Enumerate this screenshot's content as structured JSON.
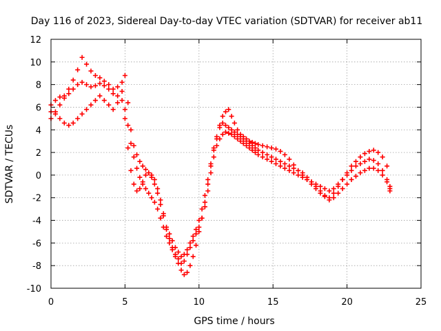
{
  "chart_data": {
    "type": "scatter",
    "title": "Day 116 of 2023, Sidereal Day-to-day VTEC variation (SDTVAR) for receiver ab11",
    "xlabel": "GPS time / hours",
    "ylabel": "SDTVAR / TECUs",
    "xlim": [
      0,
      25
    ],
    "ylim": [
      -10,
      12
    ],
    "xticks": [
      "0",
      "5",
      "10",
      "15",
      "20",
      "25"
    ],
    "yticks": [
      "12",
      "10",
      "8",
      "6",
      "4",
      "2",
      "0",
      "-2",
      "-4",
      "-6",
      "-8",
      "-10"
    ],
    "grid": true,
    "marker": "plus",
    "color": "#ff0000",
    "series": [
      {
        "x": [
          0.0,
          0.3,
          0.6,
          0.9,
          1.2,
          1.5,
          1.8,
          2.1,
          2.4,
          2.7,
          3.0,
          3.3,
          3.6,
          3.9,
          4.2,
          4.5,
          4.8,
          5.0,
          5.2,
          5.4,
          5.6,
          5.8,
          6.0,
          6.2,
          6.4,
          6.6,
          6.8,
          7.0,
          7.2,
          7.4,
          7.6,
          7.8,
          8.0,
          8.2,
          8.4,
          8.6,
          8.8,
          9.0,
          9.2,
          9.4,
          9.6,
          9.8,
          10.0,
          10.2,
          10.4,
          10.6,
          10.8,
          11.0,
          11.2,
          11.4,
          11.6,
          11.8,
          12.0,
          12.2,
          12.4,
          12.6,
          12.8,
          13.0,
          13.2,
          13.4,
          13.6,
          13.8,
          14.0,
          14.3,
          14.6,
          14.9,
          15.2,
          15.5,
          15.8,
          16.1,
          16.4,
          16.7,
          17.0,
          17.3,
          17.6,
          17.9,
          18.2,
          18.5,
          18.8,
          19.1,
          19.4,
          19.7,
          20.0,
          20.3,
          20.6,
          20.9,
          21.2,
          21.5,
          21.8,
          22.1,
          22.4,
          22.7,
          22.9
        ],
        "y": [
          5.0,
          5.6,
          6.2,
          6.8,
          7.6,
          8.4,
          9.3,
          10.4,
          9.8,
          9.2,
          8.8,
          8.6,
          8.3,
          8.0,
          7.6,
          7.8,
          8.2,
          8.8,
          6.4,
          4.0,
          2.6,
          1.8,
          1.2,
          0.8,
          0.5,
          0.2,
          0.0,
          -0.4,
          -1.2,
          -2.2,
          -3.4,
          -4.8,
          -5.6,
          -6.4,
          -7.2,
          -7.8,
          -8.4,
          -8.8,
          -8.6,
          -8.0,
          -7.2,
          -6.2,
          -5.0,
          -3.8,
          -2.4,
          -0.8,
          0.8,
          2.2,
          3.2,
          4.4,
          5.2,
          5.6,
          5.8,
          5.2,
          4.6,
          4.0,
          3.6,
          3.4,
          3.2,
          3.0,
          2.9,
          2.8,
          2.7,
          2.6,
          2.5,
          2.4,
          2.3,
          2.1,
          1.8,
          1.4,
          0.9,
          0.4,
          0.0,
          -0.4,
          -0.8,
          -1.2,
          -1.6,
          -1.9,
          -2.0,
          -1.6,
          -1.0,
          -0.4,
          0.2,
          0.8,
          1.2,
          1.6,
          1.9,
          2.1,
          2.2,
          2.0,
          1.6,
          0.8,
          -1.2
        ]
      },
      {
        "x": [
          0.0,
          0.3,
          0.6,
          0.9,
          1.2,
          1.5,
          1.8,
          2.1,
          2.4,
          2.7,
          3.0,
          3.3,
          3.6,
          3.9,
          4.2,
          4.5,
          4.8,
          5.0,
          5.2,
          5.4,
          5.6,
          5.8,
          6.0,
          6.2,
          6.4,
          6.6,
          6.8,
          7.0,
          7.2,
          7.4,
          7.6,
          7.8,
          8.0,
          8.2,
          8.4,
          8.6,
          8.8,
          9.0,
          9.2,
          9.4,
          9.6,
          9.8,
          10.0,
          10.2,
          10.4,
          10.6,
          10.8,
          11.0,
          11.2,
          11.4,
          11.6,
          11.8,
          12.0,
          12.2,
          12.4,
          12.6,
          12.8,
          13.0,
          13.2,
          13.4,
          13.6,
          13.8,
          14.0,
          14.3,
          14.6,
          14.9,
          15.2,
          15.5,
          15.8,
          16.1,
          16.4,
          16.7,
          17.0,
          17.3,
          17.6,
          17.9,
          18.2,
          18.5,
          18.8,
          19.1,
          19.4,
          19.7,
          20.0,
          20.3,
          20.6,
          20.9,
          21.2,
          21.5,
          21.8,
          22.1,
          22.4,
          22.7,
          22.9
        ],
        "y": [
          6.2,
          6.6,
          6.9,
          7.0,
          7.2,
          7.6,
          8.0,
          8.2,
          8.0,
          7.8,
          7.9,
          8.1,
          7.9,
          7.6,
          7.2,
          7.0,
          6.6,
          5.8,
          4.4,
          2.8,
          1.6,
          0.6,
          -0.2,
          -0.8,
          -1.2,
          -1.6,
          -2.0,
          -2.4,
          -3.0,
          -3.8,
          -4.6,
          -5.4,
          -6.0,
          -6.6,
          -7.0,
          -7.4,
          -7.8,
          -7.6,
          -7.0,
          -6.4,
          -5.8,
          -5.2,
          -4.6,
          -3.8,
          -2.8,
          -1.4,
          0.2,
          1.6,
          2.6,
          3.2,
          3.6,
          3.8,
          3.7,
          3.6,
          3.4,
          3.2,
          3.0,
          2.8,
          2.6,
          2.4,
          2.2,
          2.0,
          1.8,
          1.6,
          1.4,
          1.2,
          1.0,
          0.8,
          0.6,
          0.4,
          0.2,
          0.0,
          -0.2,
          -0.4,
          -0.6,
          -0.8,
          -1.0,
          -1.2,
          -1.4,
          -1.2,
          -0.8,
          -0.4,
          0.0,
          0.4,
          0.8,
          1.0,
          1.2,
          1.4,
          1.3,
          1.0,
          0.4,
          -0.4,
          -1.0
        ]
      },
      {
        "x": [
          0.0,
          0.3,
          0.6,
          0.9,
          1.2,
          1.5,
          1.8,
          2.1,
          2.4,
          2.7,
          3.0,
          3.3,
          3.6,
          3.9,
          4.2,
          4.5,
          4.8,
          5.0,
          5.2,
          5.4,
          5.6,
          5.8,
          6.0,
          6.2,
          6.4,
          6.6,
          6.8,
          7.0,
          7.2,
          7.4,
          7.6,
          7.8,
          8.0,
          8.2,
          8.4,
          8.6,
          8.8,
          9.0,
          9.2,
          9.4,
          9.6,
          9.8,
          10.0,
          10.2,
          10.4,
          10.6,
          10.8,
          11.0,
          11.2,
          11.4,
          11.6,
          11.8,
          12.0,
          12.2,
          12.4,
          12.6,
          12.8,
          13.0,
          13.2,
          13.4,
          13.6,
          13.8,
          14.0,
          14.3,
          14.6,
          14.9,
          15.2,
          15.5,
          15.8,
          16.1,
          16.4,
          16.7,
          17.0,
          17.3,
          17.6,
          17.9,
          18.2,
          18.5,
          18.8,
          19.1,
          19.4,
          19.7,
          20.0,
          20.3,
          20.6,
          20.9,
          21.2,
          21.5,
          21.8,
          22.1,
          22.4,
          22.7,
          22.9
        ],
        "y": [
          5.6,
          5.4,
          5.0,
          4.6,
          4.4,
          4.6,
          5.0,
          5.4,
          5.8,
          6.2,
          6.6,
          7.0,
          6.6,
          6.2,
          5.8,
          6.4,
          7.4,
          5.0,
          2.4,
          0.4,
          -0.8,
          -1.4,
          -1.2,
          -0.6,
          0.0,
          0.2,
          -0.2,
          -0.8,
          -1.6,
          -2.6,
          -3.6,
          -4.6,
          -5.2,
          -5.8,
          -6.4,
          -6.8,
          -7.2,
          -7.0,
          -6.6,
          -6.0,
          -5.4,
          -4.8,
          -4.0,
          -3.0,
          -1.8,
          -0.4,
          1.0,
          2.4,
          3.4,
          4.2,
          4.6,
          4.4,
          4.2,
          4.0,
          3.8,
          3.6,
          3.4,
          3.2,
          3.0,
          2.8,
          2.6,
          2.4,
          2.2,
          2.0,
          1.8,
          1.6,
          1.4,
          1.2,
          1.0,
          0.8,
          0.6,
          0.4,
          0.2,
          -0.2,
          -0.6,
          -1.0,
          -1.4,
          -1.8,
          -2.2,
          -2.0,
          -1.6,
          -1.2,
          -0.8,
          -0.4,
          -0.1,
          0.2,
          0.4,
          0.6,
          0.6,
          0.4,
          0.0,
          -0.6,
          -1.4
        ]
      }
    ]
  }
}
